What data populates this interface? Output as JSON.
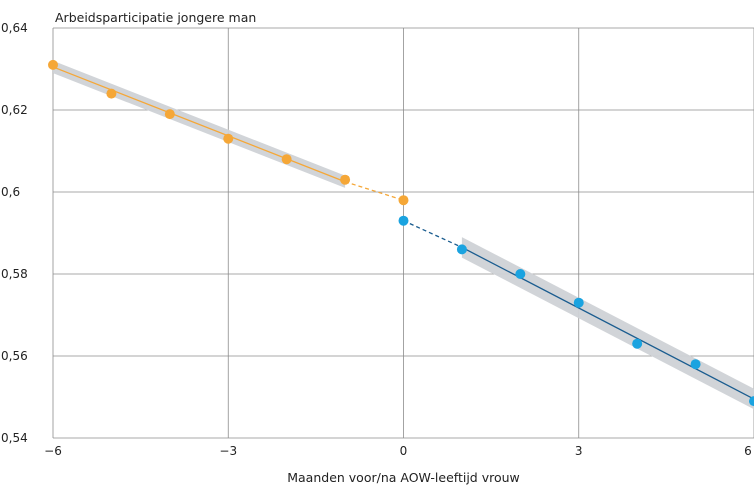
{
  "chart_data": {
    "type": "scatter",
    "title": "",
    "ylabel": "Arbeidsparticipatie jongere man",
    "xlabel": "Maanden voor/na AOW-leeftijd vrouw",
    "xlim": [
      -6,
      6
    ],
    "ylim": [
      0.54,
      0.64
    ],
    "xticks": [
      -6,
      -3,
      0,
      3,
      6
    ],
    "xtick_labels": [
      "−6",
      "−3",
      "0",
      "3",
      "6"
    ],
    "yticks": [
      0.54,
      0.56,
      0.58,
      0.6,
      0.62,
      0.64
    ],
    "ytick_labels": [
      "0,54",
      "0,56",
      "0,58",
      "0,6",
      "0,62",
      "0,64"
    ],
    "grid": true,
    "series": [
      {
        "points": [
          [
            -6,
            0.631
          ],
          [
            -5,
            0.624
          ],
          [
            -4,
            0.619
          ],
          [
            -3,
            0.613
          ],
          [
            -2,
            0.608
          ],
          [
            -1,
            0.603
          ],
          [
            0,
            0.598
          ]
        ],
        "fit": {
          "x": [
            -6,
            -1
          ],
          "y": [
            0.6305,
            0.6025
          ]
        },
        "fit_extension": {
          "x": [
            -1,
            0
          ],
          "y": [
            0.6025,
            0.598
          ]
        },
        "band_halfwidth": 0.0015,
        "marker_color": "#f5a737",
        "line_color": "#f5a737"
      },
      {
        "points": [
          [
            0,
            0.593
          ],
          [
            1,
            0.586
          ],
          [
            2,
            0.58
          ],
          [
            3,
            0.573
          ],
          [
            4,
            0.563
          ],
          [
            5,
            0.558
          ],
          [
            6,
            0.549
          ]
        ],
        "fit": {
          "x": [
            1,
            6
          ],
          "y": [
            0.5865,
            0.5495
          ]
        },
        "fit_extension": {
          "x": [
            0,
            1
          ],
          "y": [
            0.593,
            0.5865
          ]
        },
        "band_halfwidth": 0.0025,
        "marker_color": "#1aa3e0",
        "line_color": "#1a5c8f"
      }
    ],
    "band_color": "#cfd2d6"
  }
}
